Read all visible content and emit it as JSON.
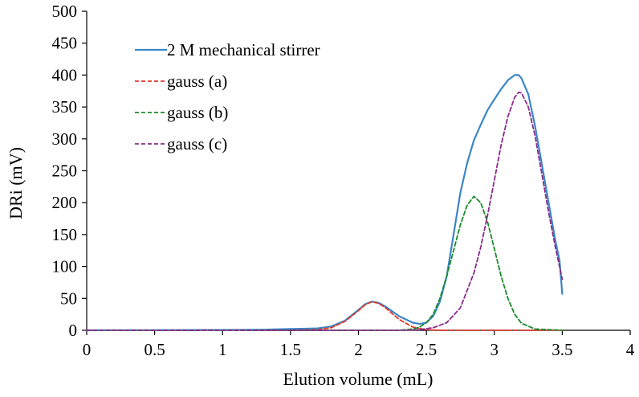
{
  "chart_data": {
    "type": "line",
    "title": "",
    "xlabel": "Elution volume (mL)",
    "ylabel": "DRi (mV)",
    "xlim": [
      0,
      4
    ],
    "ylim": [
      0,
      500
    ],
    "x_ticks": [
      "0",
      "0.5",
      "1",
      "1.5",
      "2",
      "2.5",
      "3",
      "3.5",
      "4"
    ],
    "y_ticks": [
      "0",
      "50",
      "100",
      "150",
      "200",
      "250",
      "300",
      "350",
      "400",
      "450",
      "500"
    ],
    "grid": false,
    "legend_position": "top-left",
    "series": [
      {
        "name": "2 M mechanical stirrer",
        "color": "#3b86c6",
        "dash": "solid",
        "points": [
          [
            0,
            0
          ],
          [
            0.5,
            0.3
          ],
          [
            1.0,
            0.5
          ],
          [
            1.3,
            1
          ],
          [
            1.5,
            2
          ],
          [
            1.7,
            3
          ],
          [
            1.8,
            6
          ],
          [
            1.9,
            15
          ],
          [
            2.0,
            32
          ],
          [
            2.05,
            41
          ],
          [
            2.1,
            45
          ],
          [
            2.15,
            43
          ],
          [
            2.2,
            37
          ],
          [
            2.3,
            22
          ],
          [
            2.4,
            12
          ],
          [
            2.45,
            10
          ],
          [
            2.5,
            12
          ],
          [
            2.55,
            22
          ],
          [
            2.6,
            45
          ],
          [
            2.65,
            85
          ],
          [
            2.7,
            150
          ],
          [
            2.75,
            215
          ],
          [
            2.8,
            262
          ],
          [
            2.85,
            298
          ],
          [
            2.9,
            322
          ],
          [
            2.95,
            345
          ],
          [
            3.0,
            362
          ],
          [
            3.05,
            378
          ],
          [
            3.1,
            392
          ],
          [
            3.15,
            400
          ],
          [
            3.18,
            400
          ],
          [
            3.2,
            395
          ],
          [
            3.25,
            370
          ],
          [
            3.3,
            320
          ],
          [
            3.35,
            260
          ],
          [
            3.4,
            200
          ],
          [
            3.45,
            140
          ],
          [
            3.48,
            110
          ],
          [
            3.5,
            57
          ]
        ]
      },
      {
        "name": "gauss (a)",
        "color": "#e03a2a",
        "dash": "dashed",
        "points": [
          [
            0,
            0
          ],
          [
            1.5,
            0
          ],
          [
            1.7,
            1
          ],
          [
            1.8,
            4
          ],
          [
            1.9,
            14
          ],
          [
            1.95,
            22
          ],
          [
            2.0,
            31
          ],
          [
            2.05,
            40
          ],
          [
            2.1,
            45
          ],
          [
            2.15,
            42
          ],
          [
            2.2,
            35
          ],
          [
            2.25,
            26
          ],
          [
            2.3,
            17
          ],
          [
            2.4,
            5
          ],
          [
            2.5,
            1
          ],
          [
            2.6,
            0
          ],
          [
            3.5,
            0
          ]
        ]
      },
      {
        "name": "gauss (b)",
        "color": "#1a8a2a",
        "dash": "dashed",
        "points": [
          [
            0,
            0
          ],
          [
            2.3,
            0
          ],
          [
            2.4,
            2
          ],
          [
            2.45,
            5
          ],
          [
            2.5,
            12
          ],
          [
            2.55,
            25
          ],
          [
            2.6,
            50
          ],
          [
            2.65,
            85
          ],
          [
            2.7,
            125
          ],
          [
            2.75,
            165
          ],
          [
            2.8,
            196
          ],
          [
            2.85,
            210
          ],
          [
            2.9,
            200
          ],
          [
            2.95,
            170
          ],
          [
            3.0,
            128
          ],
          [
            3.05,
            85
          ],
          [
            3.1,
            50
          ],
          [
            3.15,
            25
          ],
          [
            3.2,
            11
          ],
          [
            3.3,
            2
          ],
          [
            3.5,
            0
          ]
        ]
      },
      {
        "name": "gauss (c)",
        "color": "#8a2a8a",
        "dash": "dashed",
        "points": [
          [
            0,
            0
          ],
          [
            2.3,
            0
          ],
          [
            2.45,
            1
          ],
          [
            2.55,
            4
          ],
          [
            2.65,
            12
          ],
          [
            2.75,
            35
          ],
          [
            2.85,
            90
          ],
          [
            2.9,
            130
          ],
          [
            2.95,
            180
          ],
          [
            3.0,
            235
          ],
          [
            3.05,
            290
          ],
          [
            3.1,
            335
          ],
          [
            3.15,
            365
          ],
          [
            3.18,
            373
          ],
          [
            3.2,
            372
          ],
          [
            3.25,
            350
          ],
          [
            3.3,
            305
          ],
          [
            3.35,
            245
          ],
          [
            3.4,
            185
          ],
          [
            3.45,
            130
          ],
          [
            3.5,
            80
          ]
        ]
      }
    ]
  }
}
